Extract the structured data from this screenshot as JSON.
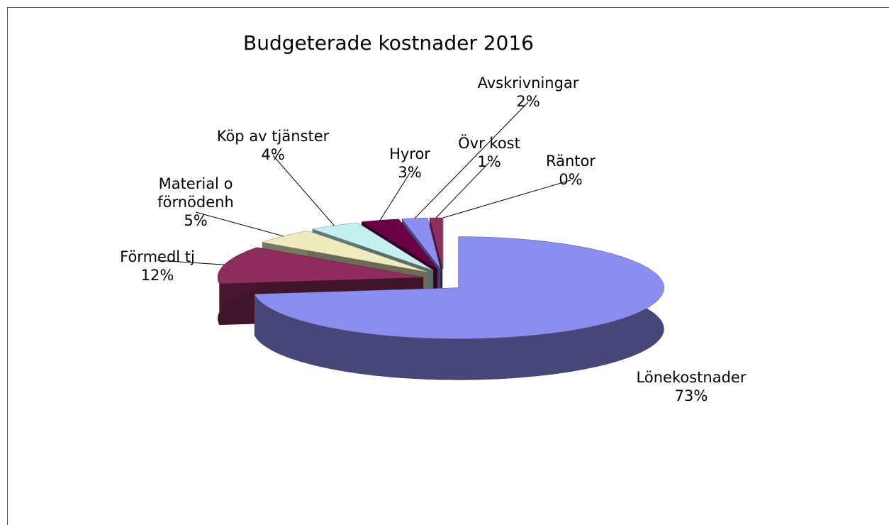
{
  "chart_data": {
    "type": "pie",
    "title": "Budgeterade kostnader 2016",
    "categories": [
      "Lönekostnader",
      "Förmedl tj",
      "Material o förnödenh",
      "Köp av tjänster",
      "Hyror",
      "Avskrivningar",
      "Övr kost",
      "Räntor"
    ],
    "values": [
      73,
      12,
      5,
      4,
      3,
      2,
      1,
      0
    ],
    "value_labels": [
      "73%",
      "12%",
      "5%",
      "4%",
      "3%",
      "2%",
      "1%",
      "0%"
    ],
    "colors": [
      "#8b8ef0",
      "#8e2d5e",
      "#efebbf",
      "#c4f0f0",
      "#6b0047",
      "#8b8ef0",
      "#8e2d5e",
      "#8b8ef0"
    ],
    "start_angle": 0,
    "direction": "clockwise"
  }
}
